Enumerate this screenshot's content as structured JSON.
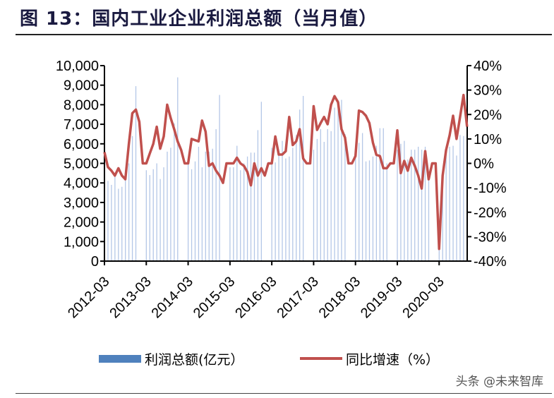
{
  "title": "图 13：国内工业企业利润总额（当月值）",
  "watermark": "头条 @未来智库",
  "chart_data": {
    "type": "bar+line",
    "title": "国内工业企业利润总额（当月值）",
    "x_start": "2012-03",
    "x_tick_labels": [
      "2012-03",
      "2013-03",
      "2014-03",
      "2015-03",
      "2016-03",
      "2017-03",
      "2018-03",
      "2019-03",
      "2020-03"
    ],
    "left_axis": {
      "ylim": [
        0,
        10000
      ],
      "tick_labels": [
        "0",
        "1,000",
        "2,000",
        "3,000",
        "4,000",
        "5,000",
        "6,000",
        "7,000",
        "8,000",
        "9,000",
        "10,000"
      ]
    },
    "right_axis": {
      "ylim": [
        -40,
        40
      ],
      "tick_labels": [
        "-40%",
        "-30%",
        "-20%",
        "-10%",
        "0%",
        "10%",
        "20%",
        "30%",
        "40%"
      ]
    },
    "legend": {
      "position": "bottom",
      "entries": [
        "利润总额(亿元）",
        "同比增速（%）"
      ]
    },
    "colors": {
      "bar": "#b4c7e7",
      "line": "#c0504d",
      "legend_bar": "#4f81bd"
    },
    "series": [
      {
        "name": "利润总额(亿元）",
        "axis": "left",
        "type": "bar",
        "values": [
          4500,
          4100,
          3900,
          4400,
          3700,
          3800,
          4650,
          5000,
          6400,
          8950,
          null,
          null,
          4650,
          4400,
          4700,
          5000,
          4200,
          4800,
          5600,
          5800,
          7050,
          9400,
          null,
          null,
          5100,
          4700,
          5100,
          5850,
          4800,
          5600,
          5600,
          5750,
          6750,
          8500,
          null,
          null,
          4800,
          4800,
          5900,
          4650,
          5000,
          5350,
          5550,
          5550,
          6700,
          8150,
          null,
          null,
          5800,
          5050,
          5400,
          6150,
          5250,
          5350,
          5800,
          6450,
          7750,
          8450,
          null,
          null,
          5700,
          6250,
          6750,
          6100,
          6750,
          6650,
          7850,
          8250,
          8250,
          6500,
          null,
          null,
          5750,
          6050,
          6550,
          5100,
          5150,
          5350,
          5900,
          6800,
          6800,
          5000,
          null,
          null,
          5700,
          6000,
          6150,
          5200,
          5700,
          5700,
          5850,
          5700,
          5850,
          4300,
          null,
          null,
          800,
          4100,
          5550,
          5850,
          5900,
          5400,
          6450,
          6400,
          6600
        ]
      },
      {
        "name": "同比增速（%）",
        "axis": "right",
        "type": "line",
        "values": [
          4.6,
          -1.5,
          -3,
          -5,
          -2,
          -5,
          -6.5,
          8,
          20.5,
          22,
          17,
          0,
          0,
          4,
          8,
          15,
          6,
          11,
          24,
          18.5,
          14,
          9,
          5.5,
          0,
          0,
          10,
          9.5,
          9,
          17.5,
          13,
          -1,
          0,
          -3,
          -5,
          -8,
          0,
          0,
          0,
          2.3,
          0,
          -1,
          -3.5,
          -9,
          0,
          -5,
          -2,
          -5,
          0,
          0,
          11,
          3.6,
          3.6,
          5,
          19,
          7.5,
          9,
          14,
          2,
          0,
          0,
          23.4,
          13.7,
          16.5,
          19,
          16,
          24,
          27.5,
          25,
          14,
          10.5,
          0,
          0,
          3,
          21.6,
          21,
          19.5,
          16.5,
          8.5,
          3.5,
          3,
          -2,
          -2,
          0,
          0,
          13.5,
          -4,
          1,
          -3,
          2.3,
          -1,
          -5,
          -10.3,
          5,
          -6.5,
          0,
          0,
          -35,
          -5,
          5.5,
          11.5,
          19.5,
          10,
          19,
          28,
          15
        ]
      }
    ]
  }
}
